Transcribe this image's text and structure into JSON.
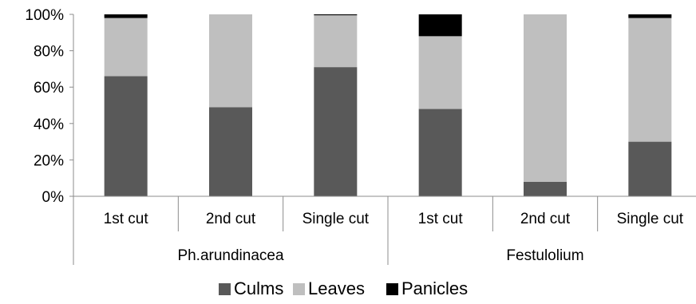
{
  "chart_data": {
    "type": "bar",
    "stacked": "percent",
    "categories": [
      "1st cut",
      "2nd cut",
      "Single cut",
      "1st cut",
      "2nd cut",
      "Single cut"
    ],
    "groups": [
      {
        "label": "Ph.arundinacea",
        "categories": [
          "1st cut",
          "2nd cut",
          "Single cut"
        ]
      },
      {
        "label": "Festulolium",
        "categories": [
          "1st cut",
          "2nd cut",
          "Single cut"
        ]
      }
    ],
    "series": [
      {
        "name": "Culms",
        "color": "#595959",
        "values": [
          66,
          49,
          71,
          48,
          8,
          30
        ]
      },
      {
        "name": "Leaves",
        "color": "#bfbfbf",
        "values": [
          32,
          51,
          28.5,
          40,
          92,
          68
        ]
      },
      {
        "name": "Panicles",
        "color": "#000000",
        "values": [
          2,
          0,
          0.5,
          12,
          0,
          2
        ]
      }
    ],
    "y_ticks": [
      "0%",
      "20%",
      "40%",
      "60%",
      "80%",
      "100%"
    ],
    "ylim": [
      0,
      100
    ],
    "grid": false,
    "legend_position": "bottom"
  }
}
